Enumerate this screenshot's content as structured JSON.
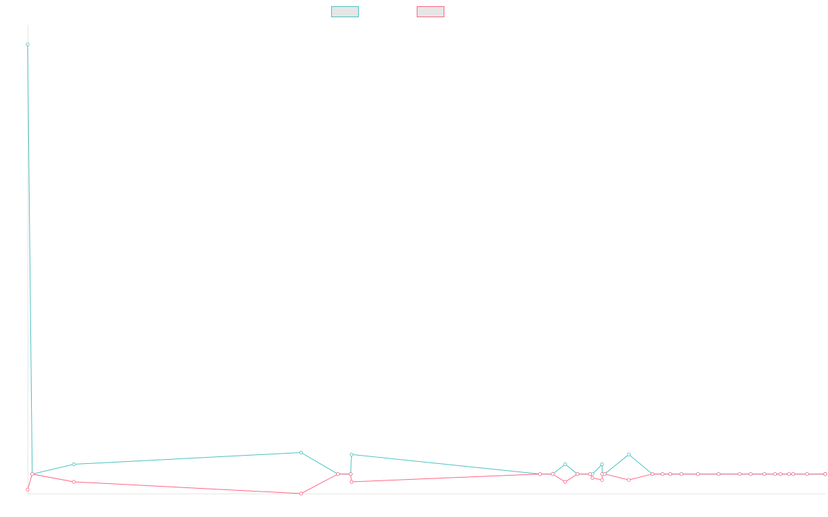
{
  "chart_data": {
    "type": "line",
    "title": "",
    "xlabel": "",
    "ylabel": "",
    "grid": false,
    "legend_position": "top-center",
    "ylim": [
      -1,
      23
    ],
    "x_count": 34,
    "series": [
      {
        "name": "",
        "color": "#4bc0c0",
        "values": [
          22,
          0,
          0.5,
          1.1,
          0,
          0,
          1,
          0,
          0,
          0.5,
          0,
          0,
          0,
          0.5,
          0,
          0,
          1,
          0,
          0,
          0,
          0,
          0,
          0,
          0,
          0,
          0,
          0,
          0,
          0,
          0,
          0,
          0,
          0,
          0
        ]
      },
      {
        "name": "",
        "color": "#ff6384",
        "values": [
          -0.8,
          0,
          -0.4,
          -1,
          0,
          0,
          -0.4,
          0,
          0,
          -0.4,
          0,
          0,
          -0.2,
          -0.3,
          0,
          0,
          -0.3,
          0,
          0,
          0,
          0,
          0,
          0,
          0,
          0,
          0,
          0,
          0,
          0,
          0,
          0,
          0,
          0,
          0
        ]
      }
    ],
    "x_positions_norm": [
      0,
      0.0058,
      0.058,
      0.3428,
      0.389,
      0.405,
      0.4061,
      0.6426,
      0.6582,
      0.674,
      0.6894,
      0.7052,
      0.7082,
      0.7202,
      0.7205,
      0.7234,
      0.7537,
      0.7833,
      0.7959,
      0.8057,
      0.8196,
      0.8404,
      0.8662,
      0.8927,
      0.9066,
      0.9237,
      0.9371,
      0.9439,
      0.9547,
      0.9599,
      0.9772,
      1.0,
      1.0,
      1.0
    ]
  }
}
